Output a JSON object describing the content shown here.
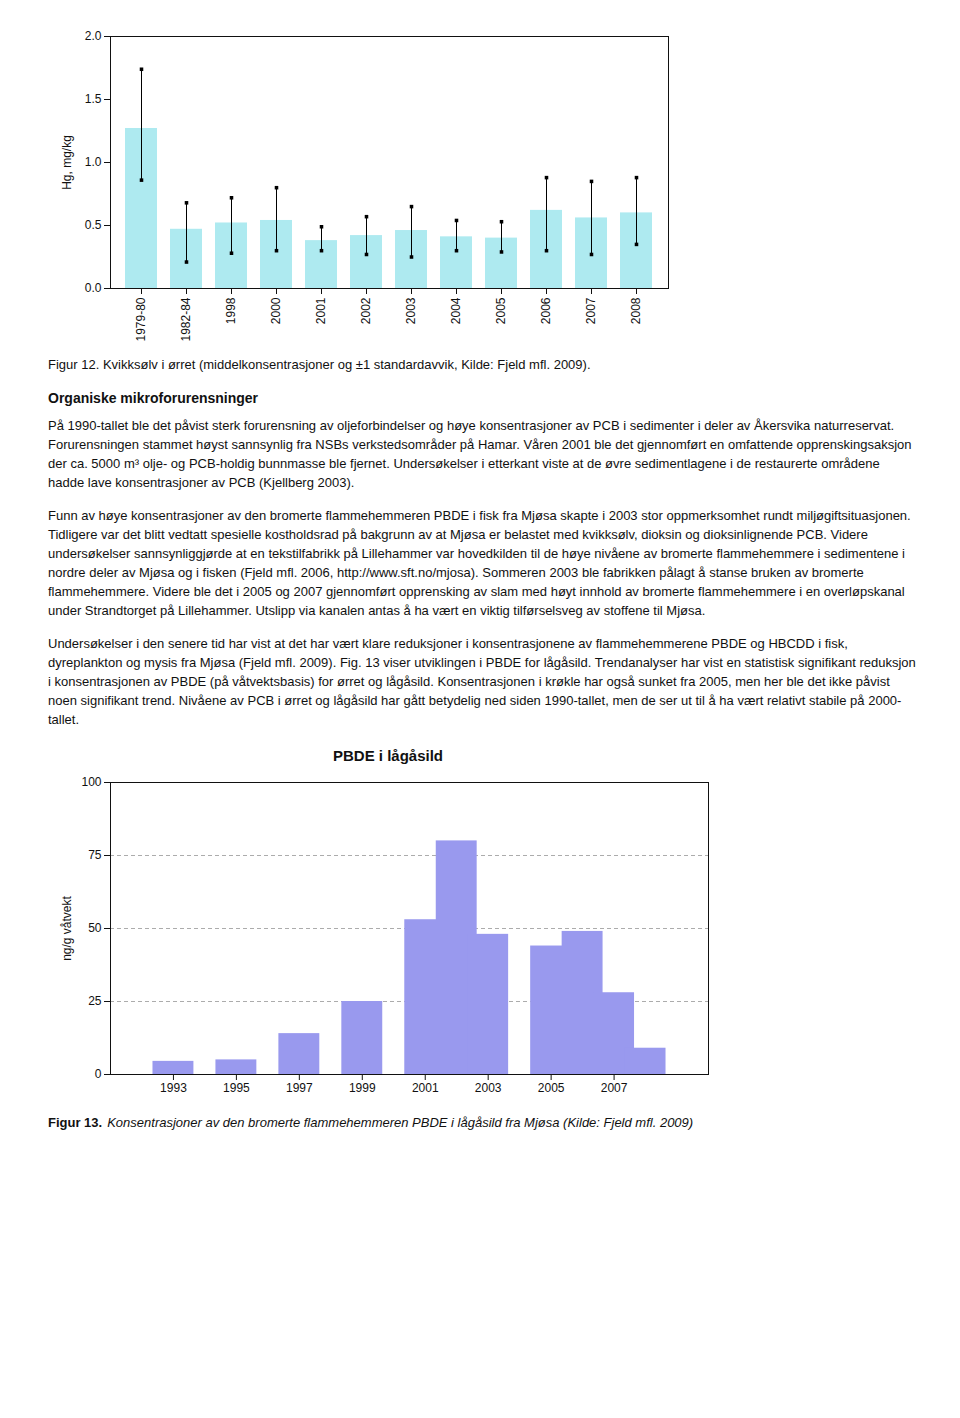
{
  "chart_data": [
    {
      "type": "bar",
      "ylabel": "Hg, mg/kg",
      "categories": [
        "1979-80",
        "1982-84",
        "1998",
        "2000",
        "2001",
        "2002",
        "2003",
        "2004",
        "2005",
        "2006",
        "2007",
        "2008"
      ],
      "values": [
        1.27,
        0.47,
        0.52,
        0.54,
        0.38,
        0.42,
        0.46,
        0.41,
        0.4,
        0.62,
        0.56,
        0.6
      ],
      "error_upper": [
        1.74,
        0.68,
        0.72,
        0.8,
        0.49,
        0.57,
        0.65,
        0.54,
        0.53,
        0.88,
        0.85,
        0.88
      ],
      "error_lower": [
        0.86,
        0.21,
        0.28,
        0.3,
        0.3,
        0.27,
        0.25,
        0.3,
        0.29,
        0.3,
        0.27,
        0.35
      ],
      "color": "#aeeaf0",
      "ylim": [
        0.0,
        2.0
      ],
      "yticks": [
        {
          "value": 0.0,
          "label": "0.0"
        },
        0.5,
        {
          "value": 1.0,
          "label": "1.0"
        },
        1.5,
        {
          "value": 2.0,
          "label": "2.0"
        }
      ],
      "caption": "Figur 12. Kvikksølv i ørret (middelkonsentrasjoner og ±1 standardavvik, Kilde: Fjeld mfl. 2009).",
      "heading": "Organiske mikroforurensninger",
      "annotations": [
        "På 1990-tallet ble det påvist sterk forurensning av oljeforbindelser og høye konsentrasjoner av PCB i sedimenter i deler av Åkersvika naturreservat. Forurensningen stammet høyst sannsynlig fra NSBs verkstedsområder på Hamar. Våren 2001 ble det gjennomført en omfattende opprenskingsaksjon der ca. 5000 m³ olje- og PCB-holdig bunnmasse ble fjernet. Undersøkelser i etterkant viste at de øvre sedimentlagene i de restaurerte områdene hadde lave konsentrasjoner av PCB (Kjellberg 2003).",
        "Funn av høye konsentrasjoner av den bromerte flammehemmeren PBDE i fisk fra Mjøsa skapte i 2003 stor oppmerksomhet rundt miljøgiftsituasjonen. Tidligere var det blitt vedtatt spesielle kostholdsrad på bakgrunn av at Mjøsa er belastet med kvikksølv, dioksin og dioksinlignende PCB. Videre undersøkelser sannsynliggjørde at en tekstilfabrikk på Lillehammer var hovedkilden til de høye nivåene av bromerte flammehemmere i sedimentene i nordre deler av Mjøsa og i fisken (Fjeld mfl. 2006, http://www.sft.no/mjosa). Sommeren 2003 ble fabrikken pålagt å stanse bruken av bromerte flammehemmere. Videre ble det i 2005 og 2007 gjennomført opprensking av slam med høyt innhold av bromerte flammehemmere i en overløpskanal under Strandtorget på Lillehammer. Utslipp via kanalen antas å ha vært en viktig tilførselsveg av stoffene til Mjøsa.",
        "Undersøkelser i den senere tid har vist at det har vært klare reduksjoner i konsentrasjonene av flammehemmerene PBDE og HBCDD i fisk, dyreplankton og mysis fra Mjøsa (Fjeld mfl. 2009). Fig. 13 viser utviklingen i PBDE for lågåsild. Trendanalyser har vist en statistisk signifikant reduksjon i konsentrasjonen av PBDE (på våtvektsbasis) for ørret og lågåsild. Konsentrasjonen i krøkle har også sunket fra 2005, men her ble det ikke påvist noen signifikant trend. Nivåene av PCB i ørret og lågåsild har gått betydelig ned siden 1990-tallet, men de ser ut til å ha vært relativt stabile på 2000-tallet."
      ]
    },
    {
      "type": "bar",
      "title": "PBDE i lågåsild",
      "ylabel": "ng/g våtvekt",
      "x": [
        1993,
        1995,
        1997,
        1999,
        2001,
        2002,
        2003,
        2005,
        2006,
        2007,
        2008
      ],
      "values": [
        4.5,
        5.0,
        14.0,
        25.0,
        53.0,
        80.0,
        48.0,
        44.0,
        49.0,
        28.0,
        9.0
      ],
      "color": "#9999ee",
      "xlim": [
        1991,
        2010
      ],
      "xticks": [
        1993,
        1995,
        1997,
        1999,
        2001,
        2003,
        2005,
        2007
      ],
      "ylim": [
        0,
        100
      ],
      "yticks": [
        0,
        25,
        50,
        75,
        100
      ],
      "grid": true,
      "caption_label": "Figur 13.",
      "caption": "Konsentrasjoner av den bromerte flammehemmeren PBDE i lågåsild fra Mjøsa (Kilde: Fjeld mfl. 2009)"
    }
  ]
}
